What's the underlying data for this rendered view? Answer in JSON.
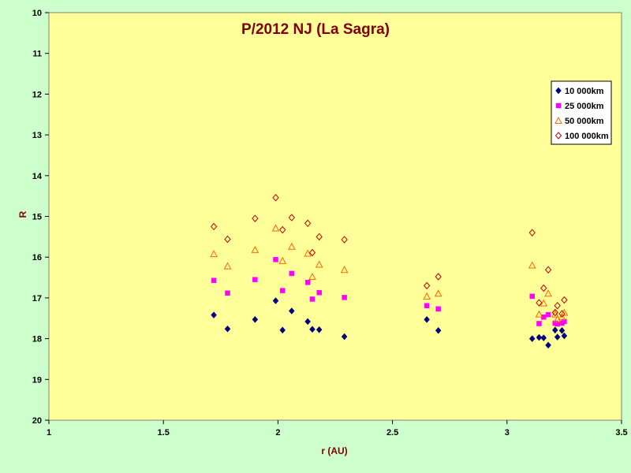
{
  "chart_data": {
    "type": "scatter",
    "title": "P/2012 NJ (La Sagra)",
    "xlabel": "r (AU)",
    "ylabel": "R",
    "xlim": [
      1,
      3.5
    ],
    "ylim": [
      20,
      10
    ],
    "y_inverted": true,
    "x_ticks": [
      "1",
      "1.5",
      "2",
      "2.5",
      "3",
      "3.5"
    ],
    "x_tick_values": [
      1,
      1.5,
      2,
      2.5,
      3,
      3.5
    ],
    "y_ticks": [
      "10",
      "11",
      "12",
      "13",
      "14",
      "15",
      "16",
      "17",
      "18",
      "19",
      "20"
    ],
    "y_tick_values": [
      10,
      11,
      12,
      13,
      14,
      15,
      16,
      17,
      18,
      19,
      20
    ],
    "grid": false,
    "legend_position": "top-right",
    "colors": {
      "plot_bg": "#ffff99",
      "page_bg": "#ccffcc",
      "title": "#800000"
    },
    "series": [
      {
        "name": "10 000km",
        "marker": "diamond",
        "color": "#000080",
        "fill": true,
        "points": [
          [
            1.72,
            17.42
          ],
          [
            1.78,
            17.76
          ],
          [
            1.9,
            17.53
          ],
          [
            1.99,
            17.07
          ],
          [
            2.02,
            17.79
          ],
          [
            2.06,
            17.32
          ],
          [
            2.13,
            17.58
          ],
          [
            2.15,
            17.77
          ],
          [
            2.18,
            17.78
          ],
          [
            2.29,
            17.95
          ],
          [
            2.65,
            17.53
          ],
          [
            2.7,
            17.8
          ],
          [
            3.11,
            18.0
          ],
          [
            3.14,
            17.97
          ],
          [
            3.16,
            17.98
          ],
          [
            3.18,
            18.16
          ],
          [
            3.21,
            17.79
          ],
          [
            3.22,
            17.96
          ],
          [
            3.24,
            17.8
          ],
          [
            3.25,
            17.93
          ]
        ]
      },
      {
        "name": "25 000km",
        "marker": "square",
        "color": "#ff00ff",
        "fill": true,
        "points": [
          [
            1.72,
            16.57
          ],
          [
            1.78,
            16.88
          ],
          [
            1.9,
            16.55
          ],
          [
            1.99,
            16.06
          ],
          [
            2.02,
            16.82
          ],
          [
            2.06,
            16.4
          ],
          [
            2.13,
            16.62
          ],
          [
            2.15,
            17.03
          ],
          [
            2.18,
            16.87
          ],
          [
            2.29,
            16.99
          ],
          [
            2.65,
            17.19
          ],
          [
            2.7,
            17.27
          ],
          [
            3.11,
            16.96
          ],
          [
            3.14,
            17.63
          ],
          [
            3.16,
            17.47
          ],
          [
            3.18,
            17.41
          ],
          [
            3.21,
            17.62
          ],
          [
            3.22,
            17.64
          ],
          [
            3.24,
            17.62
          ],
          [
            3.25,
            17.58
          ]
        ]
      },
      {
        "name": "50 000km",
        "marker": "triangle",
        "color": "#ff6600",
        "fill": false,
        "points": [
          [
            1.72,
            15.92
          ],
          [
            1.78,
            16.22
          ],
          [
            1.9,
            15.82
          ],
          [
            1.99,
            15.29
          ],
          [
            2.02,
            16.09
          ],
          [
            2.06,
            15.74
          ],
          [
            2.13,
            15.91
          ],
          [
            2.15,
            16.48
          ],
          [
            2.18,
            16.18
          ],
          [
            2.29,
            16.31
          ],
          [
            2.65,
            16.96
          ],
          [
            2.7,
            16.89
          ],
          [
            3.11,
            16.2
          ],
          [
            3.14,
            17.4
          ],
          [
            3.16,
            17.13
          ],
          [
            3.18,
            16.89
          ],
          [
            3.21,
            17.4
          ],
          [
            3.22,
            17.52
          ],
          [
            3.24,
            17.47
          ],
          [
            3.25,
            17.36
          ]
        ]
      },
      {
        "name": "100 000km",
        "marker": "diamond",
        "color": "#c00000",
        "fill": false,
        "points": [
          [
            1.72,
            15.25
          ],
          [
            1.78,
            15.56
          ],
          [
            1.9,
            15.05
          ],
          [
            1.99,
            14.54
          ],
          [
            2.02,
            15.33
          ],
          [
            2.06,
            15.03
          ],
          [
            2.13,
            15.17
          ],
          [
            2.15,
            15.89
          ],
          [
            2.18,
            15.5
          ],
          [
            2.29,
            15.57
          ],
          [
            2.65,
            16.7
          ],
          [
            2.7,
            16.48
          ],
          [
            3.11,
            15.4
          ],
          [
            3.14,
            17.12
          ],
          [
            3.16,
            16.76
          ],
          [
            3.18,
            16.31
          ],
          [
            3.21,
            17.36
          ],
          [
            3.22,
            17.19
          ],
          [
            3.24,
            17.39
          ],
          [
            3.25,
            17.05
          ]
        ]
      }
    ]
  }
}
